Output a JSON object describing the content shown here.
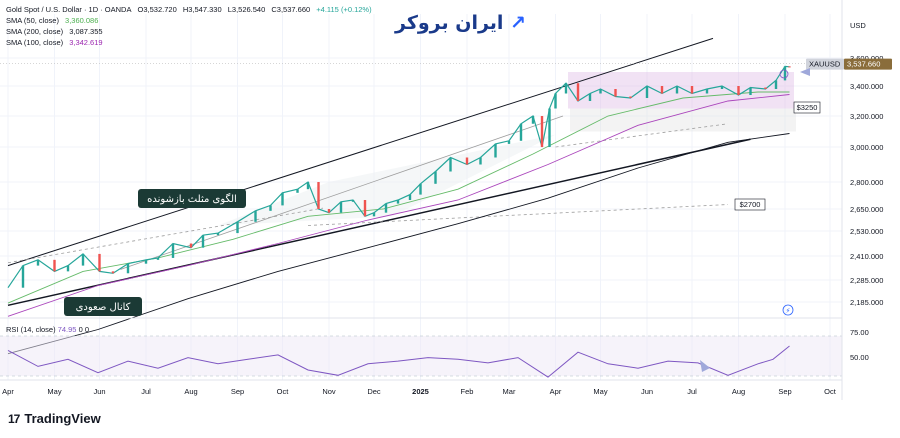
{
  "header": {
    "symbol_line": "Gold Spot / U.S. Dollar · 1D · OANDA",
    "ohlc": {
      "o": "O3,532.720",
      "h": "H3,547.330",
      "l": "L3,526.540",
      "c": "C3,537.660",
      "chg": "+4.115 (+0.12%)"
    },
    "sma": [
      {
        "label": "SMA (50, close)",
        "value": "3,360.086",
        "color": "#4caf50"
      },
      {
        "label": "SMA (200, close)",
        "value": "3,087.355",
        "color": "#131722"
      },
      {
        "label": "SMA (100, close)",
        "value": "3,342.619",
        "color": "#9c27b0"
      }
    ],
    "rsi_label": "RSI (14, close)",
    "rsi_value": "74.95",
    "rsi_extra": "0  0"
  },
  "branding": {
    "site_logo": "ایران بروکر",
    "tv_logo": "TradingView",
    "tv_mark": "17"
  },
  "annotations": {
    "triangle_label": "الگوی مثلث بازشونده",
    "channel_label": "کانال صعودی",
    "level_3250": "$3250",
    "level_2700": "$2700"
  },
  "chart_data": {
    "type": "line",
    "currency": "USD",
    "ticker_tag": "XAUUSD",
    "last_price": "3,537.660",
    "price_label_values": [
      3600,
      3400,
      3200,
      3000,
      2800,
      2650,
      2530,
      2410,
      2285,
      2185
    ],
    "price_labels": [
      "3,600.000",
      "3,400.000",
      "3,200.000",
      "3,000.000",
      "2,800.000",
      "2,650.000",
      "2,530.000",
      "2,410.000",
      "2,285.000",
      "2,185.000"
    ],
    "rsi_levels": [
      "75.00",
      "50.00"
    ],
    "x_labels": [
      "Apr",
      "May",
      "Jun",
      "Jul",
      "Aug",
      "Sep",
      "Oct",
      "Nov",
      "Dec",
      "2025",
      "Feb",
      "Mar",
      "Apr",
      "May",
      "Jun",
      "Jul",
      "Aug",
      "Sep",
      "Oct"
    ],
    "x_label_positions": [
      0,
      31,
      61,
      92,
      122,
      153,
      183,
      214,
      244,
      275,
      306,
      334,
      365,
      395,
      426,
      456,
      487,
      518,
      548
    ],
    "series": [
      {
        "kind": "price",
        "t": [
          0,
          10,
          20,
          31,
          40,
          50,
          61,
          70,
          80,
          92,
          100,
          110,
          122,
          130,
          140,
          153,
          165,
          175,
          183,
          193,
          200,
          207,
          214,
          222,
          230,
          238,
          244,
          252,
          260,
          268,
          275,
          285,
          295,
          306,
          315,
          325,
          334,
          342,
          350,
          356,
          361,
          365,
          372,
          380,
          388,
          395,
          405,
          415,
          426,
          436,
          446,
          456,
          466,
          476,
          487,
          495,
          505,
          512,
          518,
          521
        ],
        "v": [
          2250,
          2360,
          2390,
          2330,
          2360,
          2420,
          2330,
          2320,
          2370,
          2390,
          2400,
          2470,
          2450,
          2510,
          2520,
          2580,
          2640,
          2670,
          2740,
          2760,
          2800,
          2650,
          2630,
          2690,
          2700,
          2610,
          2630,
          2680,
          2700,
          2730,
          2790,
          2860,
          2940,
          2900,
          2940,
          3020,
          3040,
          3150,
          3200,
          3000,
          3250,
          3350,
          3420,
          3300,
          3350,
          3380,
          3330,
          3320,
          3400,
          3350,
          3400,
          3350,
          3380,
          3400,
          3340,
          3390,
          3380,
          3440,
          3540,
          3537
        ]
      },
      {
        "kind": "sma50",
        "t": [
          0,
          50,
          100,
          150,
          200,
          250,
          300,
          350,
          400,
          450,
          500,
          521
        ],
        "v": [
          2180,
          2330,
          2400,
          2490,
          2610,
          2650,
          2760,
          2960,
          3200,
          3320,
          3360,
          3360
        ]
      },
      {
        "kind": "sma100",
        "t": [
          0,
          60,
          120,
          180,
          240,
          300,
          360,
          420,
          480,
          521
        ],
        "v": [
          2120,
          2260,
          2360,
          2470,
          2590,
          2700,
          2900,
          3140,
          3300,
          3343
        ]
      },
      {
        "kind": "sma200",
        "t": [
          0,
          60,
          120,
          180,
          240,
          300,
          360,
          420,
          480,
          521
        ],
        "v": [
          1950,
          2060,
          2200,
          2330,
          2450,
          2570,
          2710,
          2880,
          3030,
          3087
        ]
      }
    ],
    "rsi": {
      "t": [
        0,
        20,
        40,
        60,
        80,
        100,
        120,
        140,
        160,
        180,
        200,
        220,
        240,
        260,
        280,
        300,
        320,
        340,
        360,
        380,
        400,
        420,
        440,
        460,
        480,
        500,
        510,
        521
      ],
      "v": [
        70,
        52,
        60,
        45,
        58,
        50,
        62,
        55,
        60,
        65,
        48,
        42,
        55,
        58,
        62,
        60,
        56,
        62,
        40,
        68,
        55,
        50,
        58,
        56,
        42,
        55,
        60,
        75
      ]
    }
  }
}
